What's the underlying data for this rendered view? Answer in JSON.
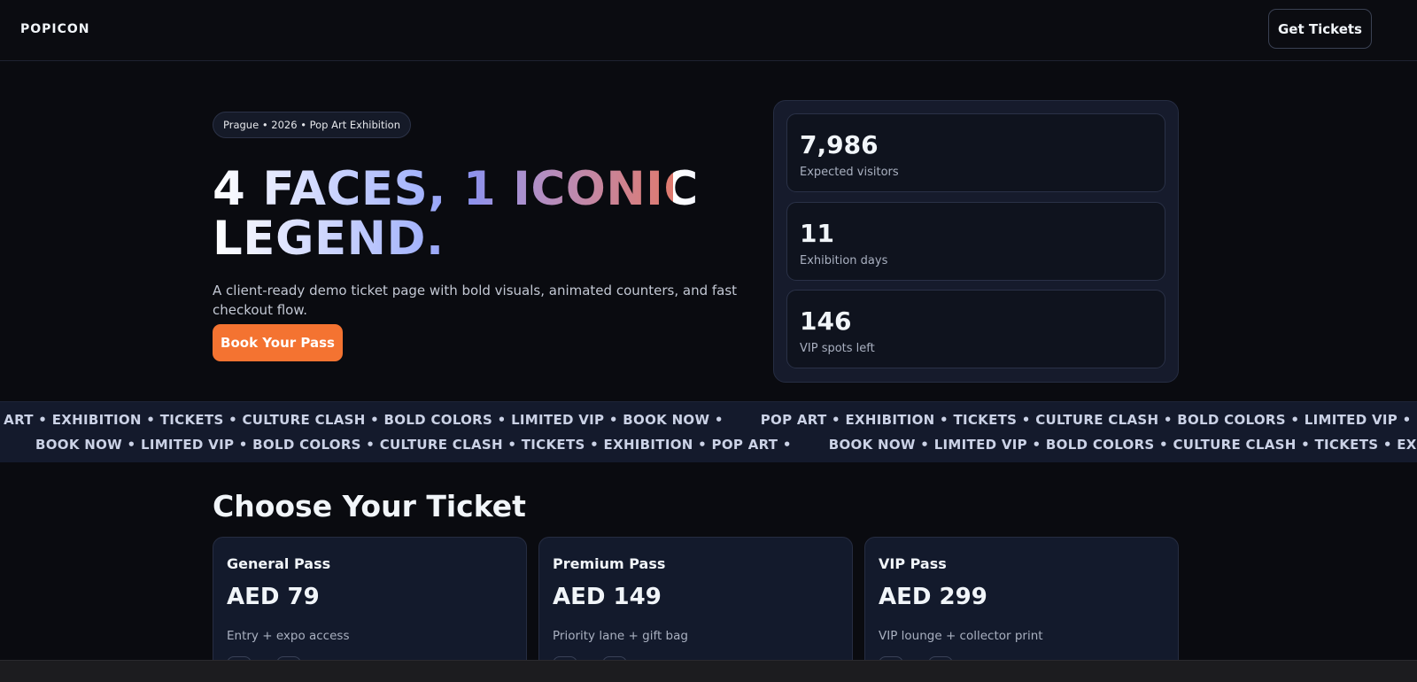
{
  "nav": {
    "logo": "POPICON",
    "cta": "Get Tickets"
  },
  "hero": {
    "tag": "Prague • 2026 • Pop Art Exhibition",
    "title_line1": "4 FACES, 1 ICONIC",
    "title_line2": "LEGEND.",
    "subtitle": "A client-ready demo ticket page with bold visuals, animated counters, and fast checkout flow.",
    "cta": "Book Your Pass"
  },
  "stats": [
    {
      "value": "7,986",
      "label": "Expected visitors"
    },
    {
      "value": "11",
      "label": "Exhibition days"
    },
    {
      "value": "146",
      "label": "VIP spots left"
    }
  ],
  "marquee": {
    "row1": "POP ART • EXHIBITION • TICKETS • CULTURE CLASH • BOLD COLORS • LIMITED VIP • BOOK NOW •",
    "row2": "BOOK NOW • LIMITED VIP • BOLD COLORS • CULTURE CLASH • TICKETS • EXHIBITION • POP ART •"
  },
  "tickets": {
    "heading": "Choose Your Ticket",
    "items": [
      {
        "name": "General Pass",
        "price": "AED 79",
        "desc": "Entry + expo access"
      },
      {
        "name": "Premium Pass",
        "price": "AED 149",
        "desc": "Priority lane + gift bag"
      },
      {
        "name": "VIP Pass",
        "price": "AED 299",
        "desc": "VIP lounge + collector print"
      }
    ]
  },
  "colors": {
    "accent": "#f47331",
    "background": "#0a0b10",
    "card": "#131a2c"
  }
}
